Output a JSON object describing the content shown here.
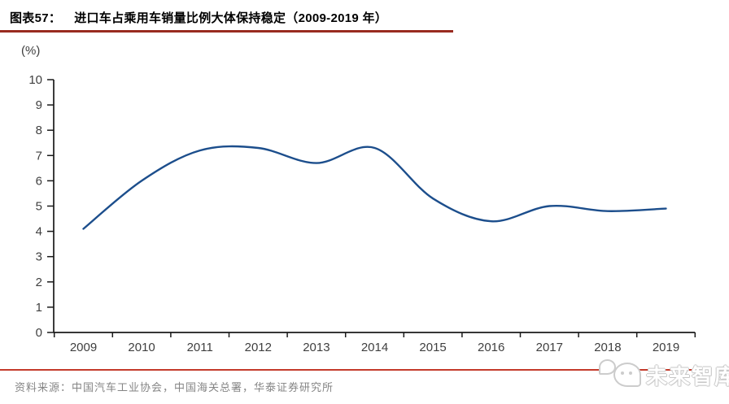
{
  "header": {
    "figure_label": "图表57：",
    "title": "进口车占乘用车销量比例大体保持稳定（2009-2019 年）"
  },
  "chart_data": {
    "type": "line",
    "title": "进口车占乘用车销量比例大体保持稳定（2009-2019 年）",
    "unit_label": "(%)",
    "categories": [
      "2009",
      "2010",
      "2011",
      "2012",
      "2013",
      "2014",
      "2015",
      "2016",
      "2017",
      "2018",
      "2019"
    ],
    "series": [
      {
        "name": "进口车占乘用车销量比例",
        "values": [
          4.1,
          6.0,
          7.2,
          7.3,
          6.7,
          7.3,
          5.3,
          4.4,
          5.0,
          4.8,
          4.9
        ]
      }
    ],
    "ylim": [
      0,
      10
    ],
    "ytick_step": 1,
    "xlabel": "",
    "ylabel": "(%)",
    "grid": false,
    "legend_position": "none",
    "smooth": true,
    "line_color": "#1c4e8c"
  },
  "footer": {
    "source_text": "资料来源：中国汽车工业协会，中国海关总署，华泰证券研究所",
    "watermark": "未来智库"
  },
  "colors": {
    "title_underline": "#992b20",
    "footer_line": "#c43a2b",
    "axis": "#1a1a1a",
    "tick_label": "#3f3f3f",
    "source_text": "#858585"
  }
}
